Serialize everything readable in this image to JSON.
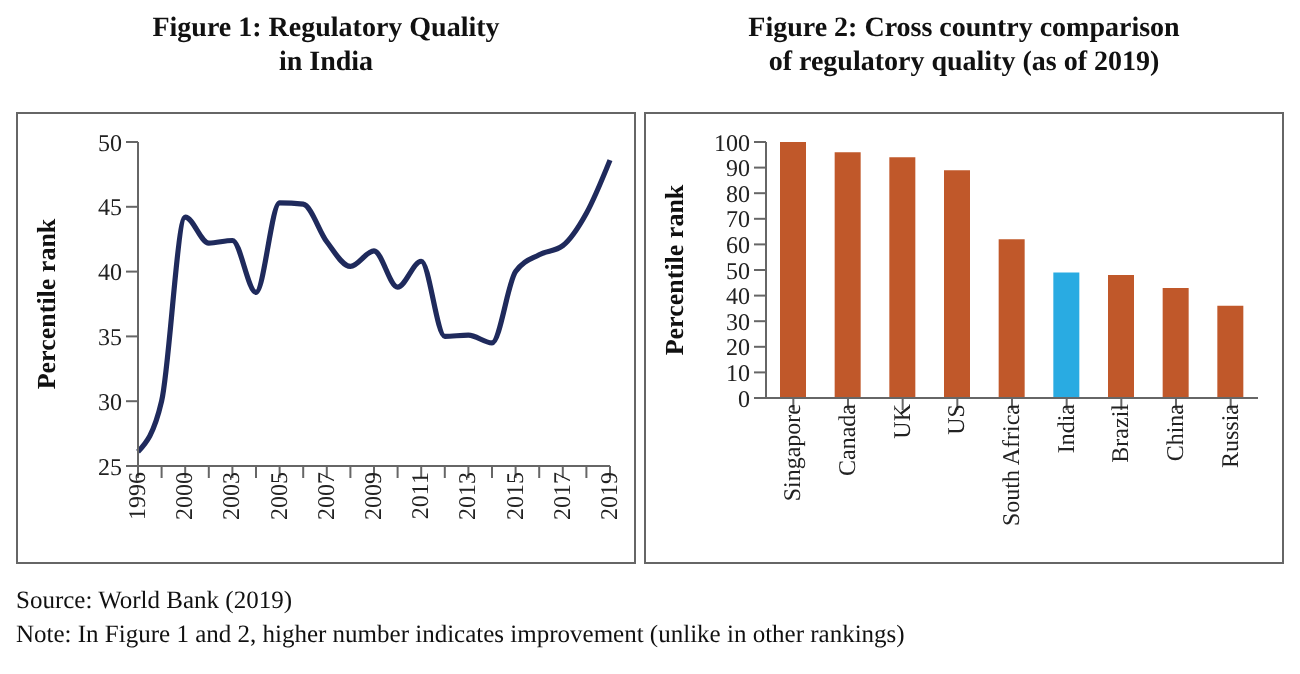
{
  "chart_data": [
    {
      "type": "line",
      "title": "Figure 1: Regulatory Quality\nin India",
      "ylabel": "Percentile rank",
      "categories": [
        "1996",
        null,
        "2000",
        null,
        "2003",
        null,
        "2005",
        null,
        "2007",
        null,
        "2009",
        null,
        "2011",
        null,
        "2013",
        null,
        "2015",
        null,
        "2017",
        null,
        "2019"
      ],
      "series": [
        {
          "color": "#1f2a5c",
          "values": [
            26.1,
            30,
            44.2,
            42.2,
            42.4,
            38.4,
            45.3,
            45.2,
            42.3,
            40.4,
            41.6,
            38.8,
            40.8,
            35,
            35.1,
            34.5,
            40,
            41.3,
            42,
            44.5,
            48.6
          ]
        }
      ],
      "ylim": [
        25,
        50
      ],
      "yticks": [
        25,
        30,
        35,
        40,
        45,
        50
      ],
      "marker": "none",
      "annotations": [
        "Source: World Bank (2019)",
        "Note: In Figure 1 and 2, higher number indicates improvement (unlike in other rankings)"
      ]
    },
    {
      "type": "bar",
      "title": "Figure 2: Cross country comparison\nof regulatory quality (as of 2019)",
      "ylabel": "Percentile rank",
      "categories": [
        "Singapore",
        "Canada",
        "UK",
        "US",
        "South Africa",
        "India",
        "Brazil",
        "China",
        "Russia"
      ],
      "values": [
        100,
        96,
        94,
        89,
        62,
        49,
        48,
        43,
        36
      ],
      "colors": [
        "#c0582a",
        "#c0582a",
        "#c0582a",
        "#c0582a",
        "#c0582a",
        "#29abe2",
        "#c0582a",
        "#c0582a",
        "#c0582a"
      ],
      "ylim": [
        0,
        100
      ],
      "yticks": [
        0,
        10,
        20,
        30,
        40,
        50,
        60,
        70,
        80,
        90,
        100
      ]
    }
  ]
}
